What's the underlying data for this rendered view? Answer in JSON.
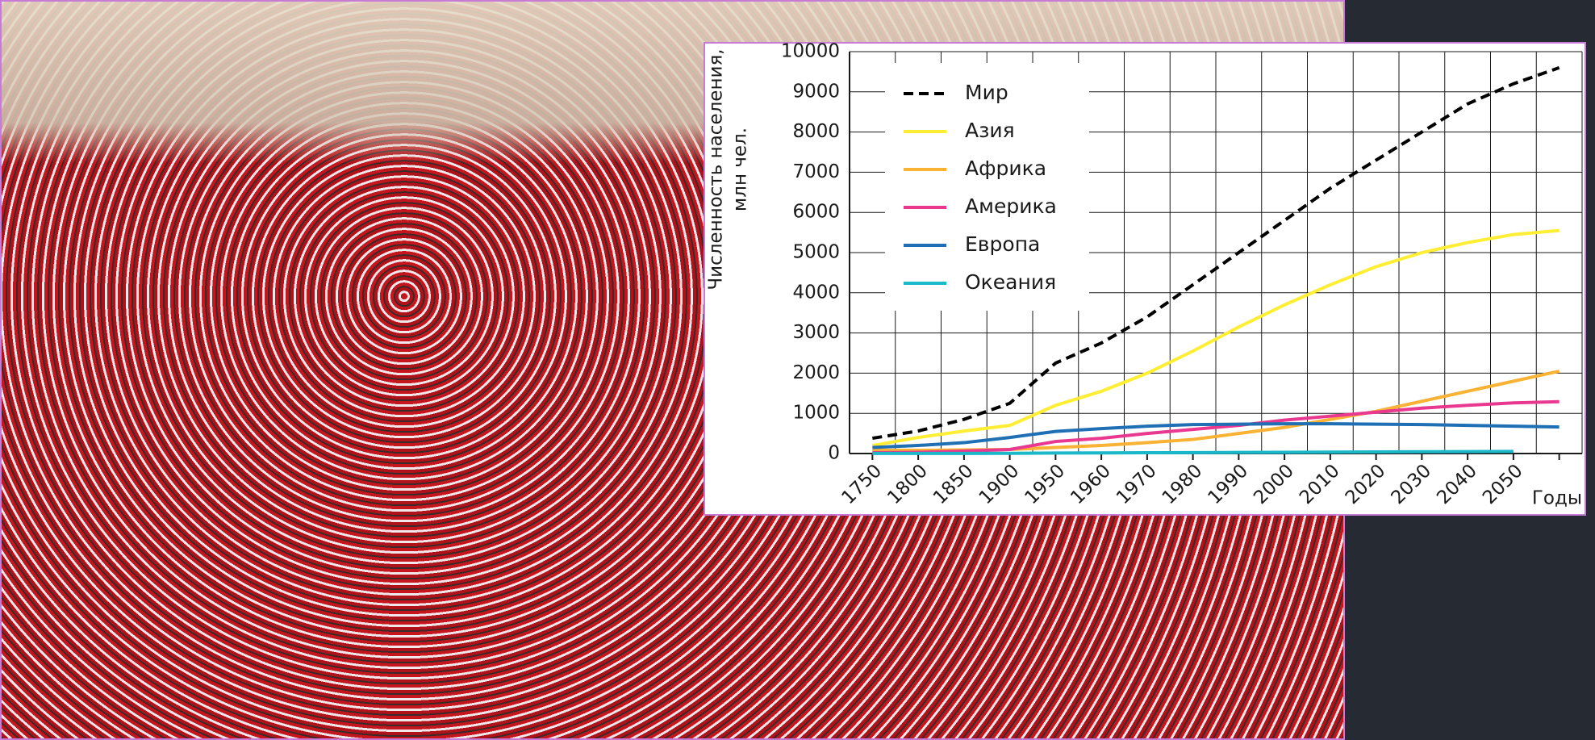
{
  "chart_data": {
    "type": "line",
    "ylabel": [
      "Численность населения,",
      "млн чел."
    ],
    "xlabel": "Годы",
    "categories": [
      "1750",
      "1800",
      "1850",
      "1900",
      "1950",
      "1960",
      "1970",
      "1980",
      "1990",
      "2000",
      "2010",
      "2020",
      "2030",
      "2040",
      "2050",
      null
    ],
    "ylim": [
      0,
      10000
    ],
    "yticks": [
      0,
      1000,
      2000,
      3000,
      4000,
      5000,
      6000,
      7000,
      8000,
      9000,
      10000
    ],
    "grid": true,
    "legend": "upper left",
    "series": [
      {
        "name": "Мир",
        "color": "#000000",
        "dashed": true,
        "values": [
          380,
          560,
          850,
          1250,
          2250,
          2750,
          3400,
          4200,
          5000,
          5800,
          6600,
          7300,
          8000,
          8700,
          9200,
          9600
        ]
      },
      {
        "name": "Азия",
        "color": "#ffee33",
        "values": [
          200,
          400,
          560,
          700,
          1200,
          1550,
          2000,
          2550,
          3150,
          3700,
          4200,
          4650,
          5000,
          5250,
          5450,
          5550
        ]
      },
      {
        "name": "Африка",
        "color": "#f9b233",
        "values": [
          80,
          80,
          90,
          100,
          150,
          200,
          270,
          350,
          500,
          650,
          850,
          1050,
          1300,
          1550,
          1800,
          2050
        ]
      },
      {
        "name": "Америка",
        "color": "#e8388f",
        "values": [
          20,
          30,
          60,
          100,
          300,
          380,
          500,
          600,
          700,
          830,
          930,
          1030,
          1130,
          1200,
          1260,
          1290
        ]
      },
      {
        "name": "Европа",
        "color": "#1f6fb5",
        "values": [
          150,
          200,
          270,
          400,
          550,
          620,
          680,
          720,
          730,
          740,
          740,
          730,
          720,
          700,
          680,
          660
        ]
      },
      {
        "name": "Океания",
        "color": "#1ab8c9",
        "values": [
          2,
          2,
          3,
          6,
          13,
          16,
          20,
          23,
          27,
          31,
          35,
          40,
          44,
          48,
          52,
          null
        ]
      }
    ]
  }
}
